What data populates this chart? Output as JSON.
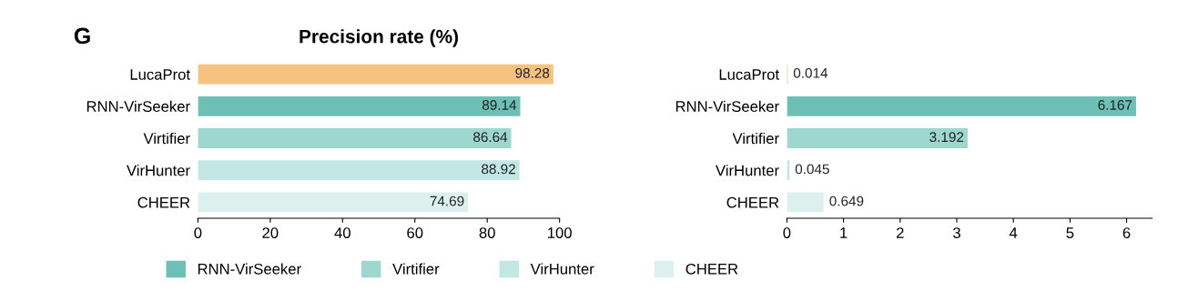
{
  "chart_data": [
    {
      "type": "bar",
      "orientation": "horizontal",
      "title": "Precision rate (%)",
      "annotations": [
        "G"
      ],
      "categories": [
        "LucaProt",
        "RNN-VirSeeker",
        "Virtifier",
        "VirHunter",
        "CHEER"
      ],
      "series": [
        {
          "color": "#f5c27f",
          "values": [
            98.28,
            null,
            null,
            null,
            null
          ]
        },
        {
          "name": "RNN-VirSeeker",
          "color": "#6cc0b6",
          "values": [
            null,
            89.14,
            null,
            null,
            null
          ]
        },
        {
          "name": "Virtifier",
          "color": "#9dd7d0",
          "values": [
            null,
            null,
            86.64,
            null,
            null
          ]
        },
        {
          "name": "VirHunter",
          "color": "#c3e7e3",
          "values": [
            null,
            null,
            null,
            88.92,
            null
          ]
        },
        {
          "name": "CHEER",
          "color": "#dcf1ee",
          "values": [
            null,
            null,
            null,
            null,
            74.69
          ]
        }
      ],
      "xlim": [
        0,
        100
      ],
      "xticks": [
        0,
        20,
        40,
        60,
        80,
        100
      ],
      "data_labels": true,
      "legend": "bottom",
      "grid": false
    },
    {
      "type": "bar",
      "orientation": "horizontal",
      "categories": [
        "LucaProt",
        "RNN-VirSeeker",
        "Virtifier",
        "VirHunter",
        "CHEER"
      ],
      "series": [
        {
          "color": "#f5c27f",
          "values": [
            0.014,
            null,
            null,
            null,
            null
          ]
        },
        {
          "color": "#6cc0b6",
          "values": [
            null,
            6.167,
            null,
            null,
            null
          ]
        },
        {
          "color": "#9dd7d0",
          "values": [
            null,
            null,
            3.192,
            null,
            null
          ]
        },
        {
          "color": "#c3e7e3",
          "values": [
            null,
            null,
            null,
            0.045,
            null
          ]
        },
        {
          "color": "#dcf1ee",
          "values": [
            null,
            null,
            null,
            null,
            0.649
          ]
        }
      ],
      "xlim": [
        0,
        6.45
      ],
      "xticks": [
        0,
        1,
        2,
        3,
        4,
        5,
        6
      ],
      "data_labels": true,
      "grid": false
    }
  ]
}
